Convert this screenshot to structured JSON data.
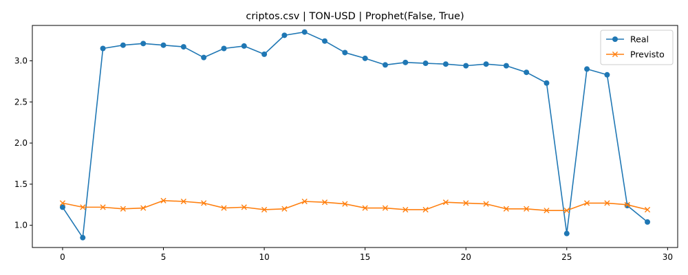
{
  "chart_data": {
    "type": "line",
    "title": "criptos.csv | TON-USD | Prophet(False, True)",
    "xlabel": "",
    "ylabel": "",
    "xlim": [
      -1.5,
      30.5
    ],
    "ylim": [
      0.73,
      3.43
    ],
    "xticks": [
      0,
      5,
      10,
      15,
      20,
      25,
      30
    ],
    "yticks": [
      1.0,
      1.5,
      2.0,
      2.5,
      3.0
    ],
    "legend_position": "top-right",
    "grid": false,
    "x": [
      0,
      1,
      2,
      3,
      4,
      5,
      6,
      7,
      8,
      9,
      10,
      11,
      12,
      13,
      14,
      15,
      16,
      17,
      18,
      19,
      20,
      21,
      22,
      23,
      24,
      25,
      26,
      27,
      28,
      29
    ],
    "series": [
      {
        "name": "Real",
        "color": "#1f77b4",
        "marker": "circle",
        "values": [
          1.22,
          0.85,
          3.15,
          3.19,
          3.21,
          3.19,
          3.17,
          3.04,
          3.15,
          3.18,
          3.08,
          3.31,
          3.35,
          3.24,
          3.1,
          3.03,
          2.95,
          2.98,
          2.97,
          2.96,
          2.94,
          2.96,
          2.94,
          2.86,
          2.73,
          0.9,
          2.9,
          2.83,
          1.24,
          1.04
        ]
      },
      {
        "name": "Previsto",
        "color": "#ff7f0e",
        "marker": "x",
        "values": [
          1.27,
          1.22,
          1.22,
          1.2,
          1.21,
          1.3,
          1.29,
          1.27,
          1.21,
          1.22,
          1.19,
          1.2,
          1.29,
          1.28,
          1.26,
          1.21,
          1.21,
          1.19,
          1.19,
          1.28,
          1.27,
          1.26,
          1.2,
          1.2,
          1.18,
          1.18,
          1.27,
          1.27,
          1.25,
          1.19
        ]
      }
    ]
  }
}
